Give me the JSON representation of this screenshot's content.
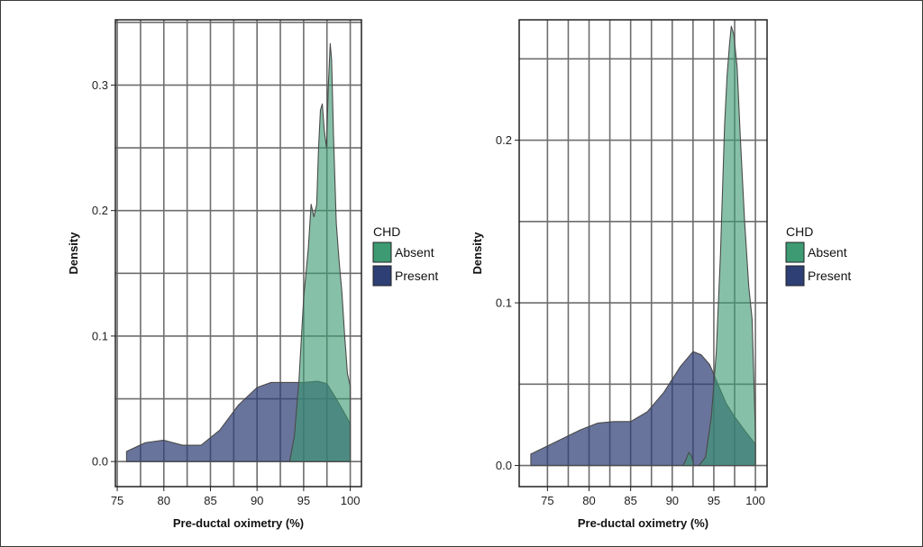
{
  "chart_data": [
    {
      "type": "area",
      "title": "",
      "xlabel": "Pre-ductal oximetry (%)",
      "ylabel": "Density",
      "xlim": [
        74.8,
        101.2
      ],
      "ylim": [
        -0.02,
        0.352
      ],
      "xticks": [
        75,
        80,
        85,
        90,
        95,
        100
      ],
      "xtick_labels": [
        "75",
        "80",
        "85",
        "90",
        "95",
        "100"
      ],
      "yticks": [
        0.0,
        0.1,
        0.2,
        0.3
      ],
      "ytick_labels": [
        "0.0",
        "0.1",
        "0.2",
        "0.3"
      ],
      "grid": true,
      "legend": {
        "title": "CHD",
        "position": "right"
      },
      "series": [
        {
          "name": "Present",
          "color": "#2e3f75",
          "x": [
            76,
            78,
            80,
            82,
            84,
            86,
            88,
            90,
            91.5,
            93,
            95,
            96.5,
            97.5,
            98.5,
            99.5,
            100
          ],
          "y": [
            0.008,
            0.015,
            0.017,
            0.013,
            0.013,
            0.025,
            0.045,
            0.059,
            0.063,
            0.063,
            0.063,
            0.064,
            0.062,
            0.05,
            0.037,
            0.03
          ]
        },
        {
          "name": "Absent",
          "color": "#3d9a72",
          "x": [
            93.5,
            94,
            94.5,
            95,
            95.5,
            95.8,
            96.1,
            96.4,
            96.6,
            96.8,
            97,
            97.2,
            97.45,
            97.65,
            97.85,
            98,
            98.2,
            98.5,
            98.8,
            99.1,
            99.4,
            99.7,
            100
          ],
          "y": [
            0.0,
            0.02,
            0.065,
            0.13,
            0.17,
            0.205,
            0.195,
            0.205,
            0.25,
            0.28,
            0.285,
            0.265,
            0.25,
            0.3,
            0.333,
            0.32,
            0.26,
            0.19,
            0.16,
            0.135,
            0.1,
            0.07,
            0.06
          ]
        }
      ]
    },
    {
      "type": "area",
      "title": "",
      "xlabel": "Pre-ductal oximetry (%)",
      "ylabel": "Density",
      "xlim": [
        71.6,
        101.4
      ],
      "ylim": [
        -0.013,
        0.274
      ],
      "xticks": [
        75,
        80,
        85,
        90,
        95,
        100
      ],
      "xtick_labels": [
        "75",
        "80",
        "85",
        "90",
        "95",
        "100"
      ],
      "yticks": [
        0.0,
        0.1,
        0.2
      ],
      "ytick_labels": [
        "0.0",
        "0.1",
        "0.2"
      ],
      "grid": true,
      "legend": {
        "title": "CHD",
        "position": "right"
      },
      "series": [
        {
          "name": "Present",
          "color": "#2e3f75",
          "x": [
            73,
            75,
            77,
            79,
            81,
            83,
            85,
            87,
            89,
            91,
            92.5,
            93.5,
            94.5,
            95.5,
            96.5,
            97.5,
            98.5,
            100
          ],
          "y": [
            0.007,
            0.012,
            0.017,
            0.022,
            0.026,
            0.027,
            0.027,
            0.033,
            0.045,
            0.061,
            0.07,
            0.068,
            0.062,
            0.05,
            0.038,
            0.03,
            0.023,
            0.013
          ]
        },
        {
          "name": "Absent",
          "color": "#3d9a72",
          "x": [
            91.3,
            91.6,
            92,
            92.3,
            92.6,
            93.2,
            94,
            94.7,
            95.3,
            95.8,
            96.3,
            96.6,
            96.9,
            97.1,
            97.4,
            97.8,
            98.2,
            98.7,
            99.2,
            99.6,
            100
          ],
          "y": [
            0.0,
            0.003,
            0.008,
            0.006,
            0.0,
            0.0,
            0.005,
            0.03,
            0.07,
            0.13,
            0.21,
            0.24,
            0.26,
            0.27,
            0.265,
            0.245,
            0.2,
            0.15,
            0.11,
            0.09,
            0.02
          ]
        }
      ]
    }
  ]
}
